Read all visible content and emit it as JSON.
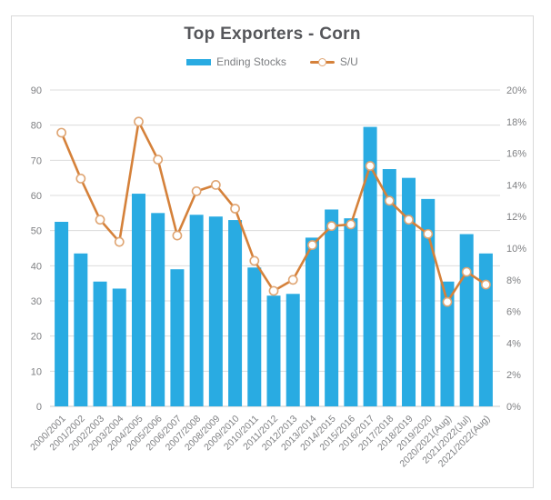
{
  "chart_data": {
    "type": "combo",
    "title": "Top Exporters - Corn",
    "legend_position": "top",
    "grid": "horizontal",
    "categories": [
      "2000/2001",
      "2001/2002",
      "2002/2003",
      "2003/2004",
      "2004/2005",
      "2005/2006",
      "2006/2007",
      "2007/2008",
      "2008/2009",
      "2009/2010",
      "2010/2011",
      "2011/2012",
      "2012/2013",
      "2013/2014",
      "2014/2015",
      "2015/2016",
      "2016/2017",
      "2017/2018",
      "2018/2019",
      "2019/2020",
      "2020/2021(Aug)",
      "2021/2022(Jul)",
      "2021/2022(Aug)"
    ],
    "series": [
      {
        "name": "Ending Stocks",
        "type": "bar",
        "axis": "left",
        "color": "#29abe2",
        "values": [
          52.5,
          43.5,
          35.5,
          33.5,
          60.5,
          55,
          39,
          54.5,
          54,
          53,
          39.5,
          31.5,
          32,
          48,
          56,
          53.5,
          79.5,
          67.5,
          65,
          59,
          35.5,
          49,
          43.5
        ]
      },
      {
        "name": "S/U",
        "type": "line",
        "axis": "right",
        "color": "#d5813a",
        "marker_fill": "#ffffff",
        "marker_stroke": "#dfa573",
        "values": [
          17.3,
          14.4,
          11.8,
          10.4,
          18.0,
          15.6,
          10.8,
          13.6,
          14.0,
          12.5,
          9.2,
          7.3,
          8.0,
          10.2,
          11.4,
          11.5,
          15.2,
          13.0,
          11.8,
          10.9,
          6.6,
          8.5,
          7.7
        ]
      }
    ],
    "left_axis": {
      "min": 0,
      "max": 90,
      "step": 10,
      "tick_labels": [
        "0",
        "10",
        "20",
        "30",
        "40",
        "50",
        "60",
        "70",
        "80",
        "90"
      ]
    },
    "right_axis": {
      "min": 0,
      "max": 20,
      "step": 2,
      "tick_labels": [
        "0%",
        "2%",
        "4%",
        "6%",
        "8%",
        "10%",
        "12%",
        "14%",
        "16%",
        "18%",
        "20%"
      ]
    },
    "colors": {
      "grid": "#dcdcdc",
      "axis_line": "#c8c8c8",
      "tick_text": "#7f8083",
      "title_text": "#55565a",
      "legend_text": "#7b7d80"
    }
  }
}
